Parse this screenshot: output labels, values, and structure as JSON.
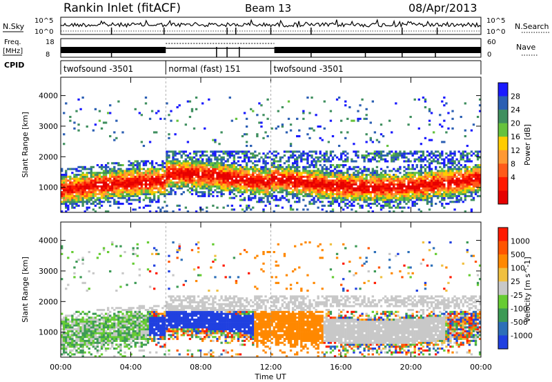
{
  "header": {
    "station": "Rankin Inlet (fitACF)",
    "beam": "Beam 13",
    "date": "08/Apr/2013"
  },
  "top_panels": {
    "nsky_label": "N.Sky",
    "nsky_ticks": [
      "10^5",
      "10^0"
    ],
    "nsearch_label": "N.Search",
    "nsearch_ticks": [
      "10^5",
      "10^0"
    ],
    "freq_label": "Freq.",
    "freq_unit": "[MHz]",
    "freq_ticks": [
      "18",
      "8"
    ],
    "nave_label": "Nave",
    "nave_ticks": [
      "60",
      "0"
    ],
    "cpid_label": "CPID",
    "cpid_segments": [
      {
        "label": "twofsound -3501",
        "start_hour": 0,
        "end_hour": 6
      },
      {
        "label": "normal (fast) 151",
        "start_hour": 6,
        "end_hour": 12
      },
      {
        "label": "twofsound -3501",
        "start_hour": 12,
        "end_hour": 24
      }
    ]
  },
  "colors": {
    "power": [
      "#1a1aff",
      "#2b5fb3",
      "#3f8f5f",
      "#66c23d",
      "#ffcc00",
      "#ff9933",
      "#ff5a1a",
      "#ff1a00",
      "#e60000"
    ],
    "velocity": [
      "#2040e0",
      "#2d6fb8",
      "#3c9a55",
      "#66cc33",
      "#c8c8c8",
      "#f0c040",
      "#ff8800",
      "#ff5500",
      "#ff1a00"
    ]
  },
  "chart_data": [
    {
      "type": "heatmap",
      "name": "power",
      "ylabel": "Slant Range [km]",
      "colorbar_label": "Power [dB]",
      "colorbar_ticks": [
        "28",
        "24",
        "20",
        "16",
        "12",
        "8",
        "4"
      ],
      "ylim": [
        180,
        4600
      ],
      "xlim": [
        0,
        24
      ],
      "y_ticks": [
        "1000",
        "2000",
        "3000",
        "4000"
      ],
      "y_tick_values": [
        1000,
        2000,
        3000,
        4000
      ],
      "x_ticks": [
        "00:00",
        "04:00",
        "08:00",
        "12:00",
        "16:00",
        "20:00",
        "00:00"
      ],
      "x_tick_values": [
        0,
        4,
        8,
        12,
        16,
        20,
        24
      ]
    },
    {
      "type": "heatmap",
      "name": "velocity",
      "ylabel": "Slant Range [km]",
      "colorbar_label": "Velocity [m s^-1]",
      "colorbar_ticks": [
        "1000",
        "500",
        "100",
        "25",
        "-25",
        "-100",
        "-500",
        "-1000"
      ],
      "ylim": [
        180,
        4600
      ],
      "xlim": [
        0,
        24
      ],
      "xlabel": "Time UT",
      "y_ticks": [
        "1000",
        "2000",
        "3000",
        "4000"
      ],
      "y_tick_values": [
        1000,
        2000,
        3000,
        4000
      ],
      "x_ticks": [
        "00:00",
        "04:00",
        "08:00",
        "12:00",
        "16:00",
        "20:00",
        "00:00"
      ],
      "x_tick_values": [
        0,
        4,
        8,
        12,
        16,
        20,
        24
      ]
    }
  ]
}
